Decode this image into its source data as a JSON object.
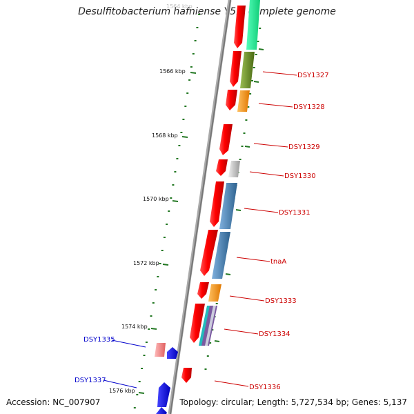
{
  "title": "Desulfitobacterium hafniense Y51, complete genome",
  "accession": "Accession: NC_007907",
  "topology": "Topology: circular; Length: 5,727,534 bp; Genes: 5,137",
  "scale_labels": [
    "1564 kbp",
    "1566 kbp",
    "1568 kbp",
    "1570 kbp",
    "1572 kbp",
    "1574 kbp",
    "1576 kbp"
  ],
  "colors": {
    "forward_label": "#cc0000",
    "reverse_label": "#0000cc",
    "backbone": "#888888",
    "tick": "#227722"
  },
  "genes": [
    {
      "label": "",
      "strand": "+",
      "cog_color": "#22ee99"
    },
    {
      "label": "DSY1327",
      "strand": "+",
      "cog_color": "#6b8e23"
    },
    {
      "label": "DSY1328",
      "strand": "+",
      "cog_color": "#ff8c00"
    },
    {
      "label": "DSY1329",
      "strand": "+",
      "cog_color": ""
    },
    {
      "label": "DSY1330",
      "strand": "+",
      "cog_color": "#bbbbbb"
    },
    {
      "label": "DSY1331",
      "strand": "+",
      "cog_color": "#4682b4"
    },
    {
      "label": "tnaA",
      "strand": "+",
      "cog_color": "#4682b4"
    },
    {
      "label": "DSY1333",
      "strand": "+",
      "cog_color": "#ff8c00"
    },
    {
      "label": "DSY1334",
      "strand": "+",
      "cog_color": "#8866aa"
    },
    {
      "label": "DSY1335",
      "strand": "-",
      "cog_color": "#f08080"
    },
    {
      "label": "DSY1336",
      "strand": "+",
      "cog_color": ""
    },
    {
      "label": "DSY1337",
      "strand": "-",
      "cog_color": ""
    }
  ]
}
